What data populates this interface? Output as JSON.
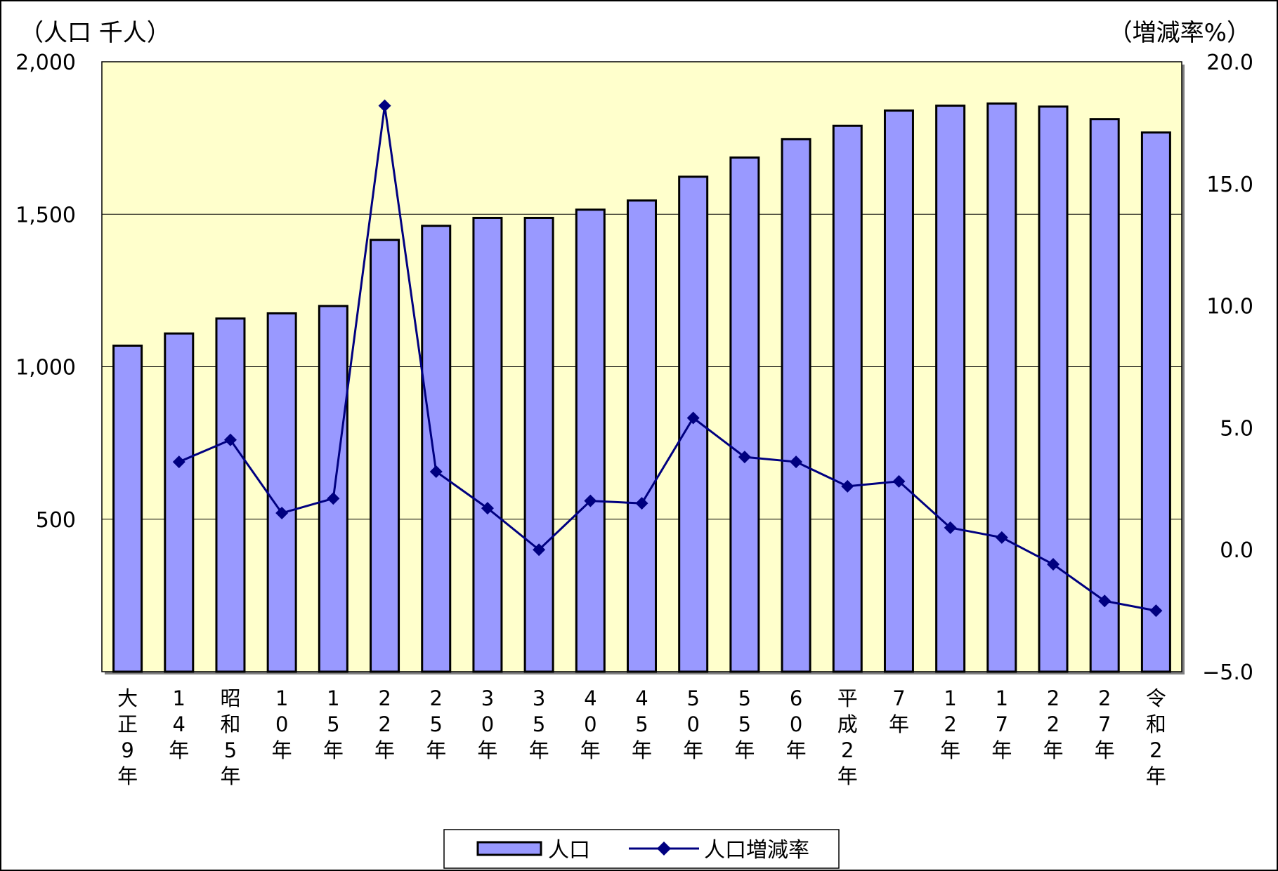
{
  "chart_data": {
    "type": "bar",
    "y_left_label": "（人口 千人）",
    "y_right_label": "（増減率%）",
    "y_left_ticks": [
      "500",
      "1,000",
      "1,500",
      "2,000"
    ],
    "y_right_ticks": [
      "−5.0",
      "0.0",
      "5.0",
      "10.0",
      "15.0",
      "20.0"
    ],
    "ylim_left": [
      0,
      2000
    ],
    "ylim_right": [
      -5,
      20
    ],
    "grid": true,
    "plot_background": "#ffffcc",
    "categories": [
      "大正9年",
      "14年",
      "昭和5年",
      "10年",
      "15年",
      "22年",
      "25年",
      "30年",
      "35年",
      "40年",
      "45年",
      "50年",
      "55年",
      "60年",
      "平成2年",
      "7年",
      "12年",
      "17年",
      "22年",
      "27年",
      "令和2年"
    ],
    "category_labels": [
      [
        "大",
        "正",
        "9",
        "年"
      ],
      [
        "1",
        "4",
        "年"
      ],
      [
        "昭",
        "和",
        "5",
        "年"
      ],
      [
        "1",
        "0",
        "年"
      ],
      [
        "1",
        "5",
        "年"
      ],
      [
        "2",
        "2",
        "年"
      ],
      [
        "2",
        "5",
        "年"
      ],
      [
        "3",
        "0",
        "年"
      ],
      [
        "3",
        "5",
        "年"
      ],
      [
        "4",
        "0",
        "年"
      ],
      [
        "4",
        "5",
        "年"
      ],
      [
        "5",
        "0",
        "年"
      ],
      [
        "5",
        "5",
        "年"
      ],
      [
        "6",
        "0",
        "年"
      ],
      [
        "平",
        "成",
        "2",
        "年"
      ],
      [
        "7",
        "年"
      ],
      [
        "1",
        "2",
        "年"
      ],
      [
        "1",
        "7",
        "年"
      ],
      [
        "2",
        "2",
        "年"
      ],
      [
        "2",
        "7",
        "年"
      ],
      [
        "令",
        "和",
        "2",
        "年"
      ]
    ],
    "series": [
      {
        "name": "人口",
        "type": "bar",
        "axis": "left",
        "color": "#9999ff",
        "values": [
          1069,
          1109,
          1158,
          1175,
          1199,
          1416,
          1462,
          1488,
          1488,
          1515,
          1545,
          1623,
          1686,
          1746,
          1790,
          1840,
          1856,
          1863,
          1853,
          1812,
          1768
        ]
      },
      {
        "name": "人口増減率",
        "type": "line",
        "axis": "right",
        "color": "#000080",
        "values": [
          null,
          3.6,
          4.5,
          1.5,
          2.1,
          18.2,
          3.2,
          1.7,
          0.0,
          2.0,
          1.9,
          5.4,
          3.8,
          3.6,
          2.6,
          2.8,
          0.9,
          0.5,
          -0.6,
          -2.1,
          -2.5
        ]
      }
    ],
    "legend_position": "bottom-center"
  }
}
